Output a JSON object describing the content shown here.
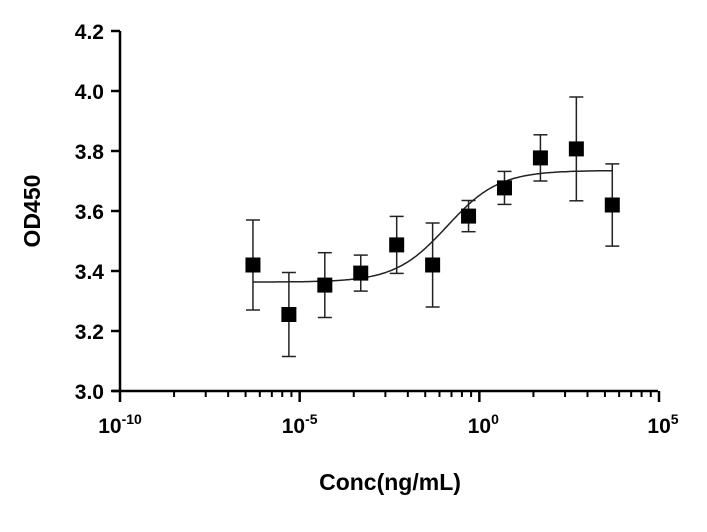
{
  "chart_data": {
    "type": "scatter",
    "title": "",
    "xlabel": "Conc(ng/mL)",
    "ylabel": "OD450",
    "xscale": "log10",
    "xlim_log10": [
      -10,
      5
    ],
    "ylim": [
      3.0,
      4.2
    ],
    "x_ticks_log10": [
      -10,
      -5,
      0,
      5
    ],
    "x_tick_labels": [
      {
        "base": "10",
        "exp": "-10"
      },
      {
        "base": "10",
        "exp": "-5"
      },
      {
        "base": "10",
        "exp": "0"
      },
      {
        "base": "10",
        "exp": "5"
      }
    ],
    "y_ticks": [
      "3.0",
      "3.2",
      "3.4",
      "3.6",
      "3.8",
      "4.0",
      "4.2"
    ],
    "grid": false,
    "series": [
      {
        "name": "OD450",
        "marker": "square",
        "color": "#000000",
        "x_log10": [
          -6.3,
          -5.3,
          -4.3,
          -3.3,
          -2.3,
          -1.3,
          -0.3,
          0.7,
          1.7,
          2.7,
          3.7
        ],
        "y": [
          3.42,
          3.255,
          3.353,
          3.393,
          3.487,
          3.42,
          3.583,
          3.677,
          3.777,
          3.807,
          3.62
        ],
        "error": [
          0.15,
          0.14,
          0.108,
          0.06,
          0.095,
          0.14,
          0.052,
          0.055,
          0.077,
          0.173,
          0.137
        ]
      }
    ],
    "fit": {
      "model": "4PL",
      "bottom": 3.363,
      "top": 3.735,
      "log_ec50": -0.9,
      "hill": 0.6,
      "x_range_log10": [
        -6.3,
        3.7
      ]
    }
  }
}
